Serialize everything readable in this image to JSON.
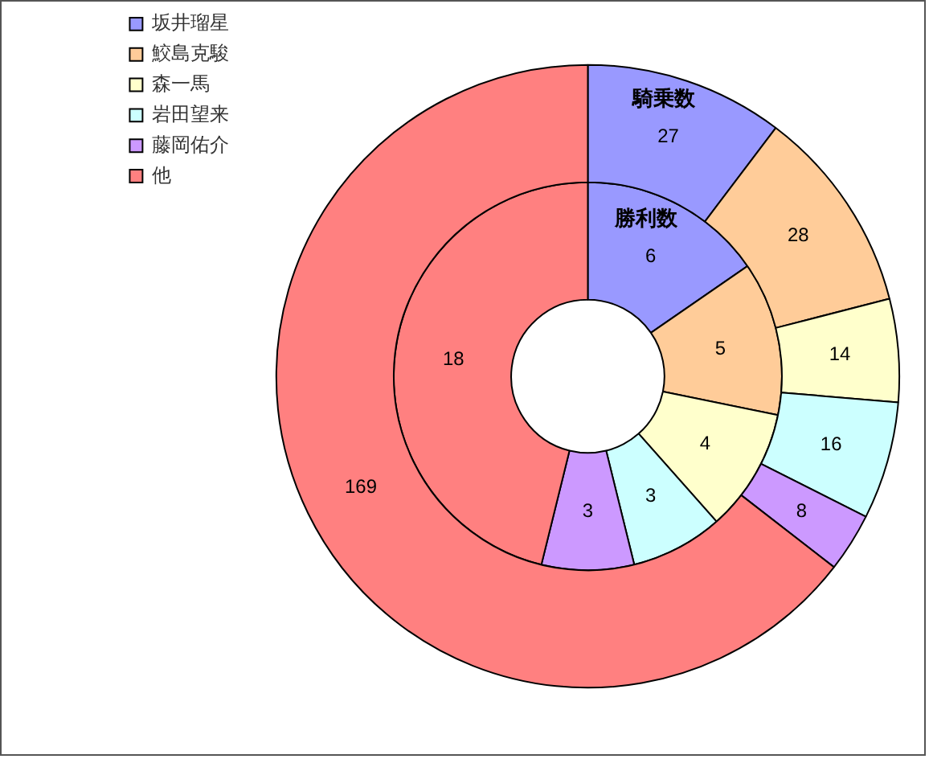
{
  "chart_data": {
    "type": "donut",
    "categories": [
      "坂井瑠星",
      "鮫島克駿",
      "森一馬",
      "岩田望来",
      "藤岡佑介",
      "他"
    ],
    "colors": [
      "#9999ff",
      "#ffcc99",
      "#ffffcc",
      "#ccffff",
      "#cc99ff",
      "#ff8080"
    ],
    "series": [
      {
        "name": "騎乗数",
        "values": [
          27,
          28,
          14,
          16,
          8,
          169
        ]
      },
      {
        "name": "勝利数",
        "values": [
          6,
          5,
          4,
          3,
          3,
          18
        ]
      }
    ],
    "data_labels": true,
    "legend": "top left"
  }
}
